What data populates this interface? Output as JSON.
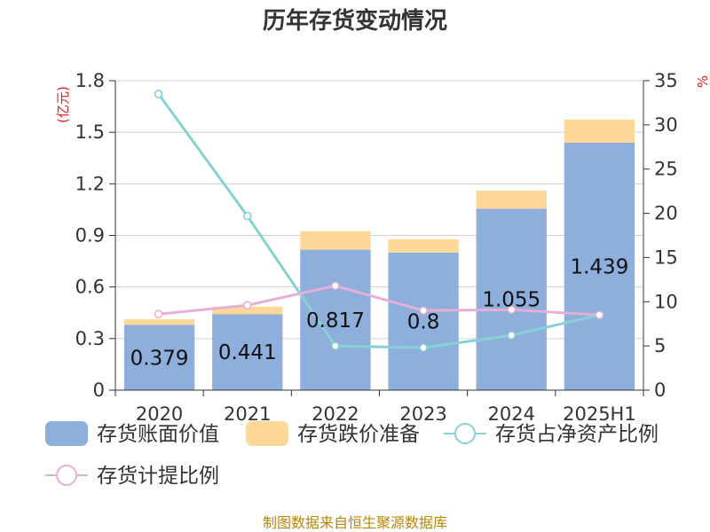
{
  "colors": {
    "book_value": "#8eaedb",
    "reserve": "#fdd898",
    "net_asset_ratio": "#87d1d4",
    "provision_ratio": "#e6b0d6",
    "source_text": "#b8860b",
    "unit_text": "#e02020"
  },
  "chart_data": {
    "type": "bar",
    "title": "历年存货变动情况",
    "left_axis_unit": "(亿元)",
    "right_axis_unit": "%",
    "categories": [
      "2020",
      "2021",
      "2022",
      "2023",
      "2024",
      "2025H1"
    ],
    "ylim_left": [
      0,
      1.8
    ],
    "yticks_left": [
      "0",
      "0.3",
      "0.6",
      "0.9",
      "1.2",
      "1.5",
      "1.8"
    ],
    "ylim_right": [
      0,
      35
    ],
    "yticks_right": [
      "0",
      "5",
      "10",
      "15",
      "20",
      "25",
      "30",
      "35"
    ],
    "grid": true,
    "series": [
      {
        "name": "存货账面价值",
        "kind": "bar-stack",
        "values": [
          0.379,
          0.441,
          0.817,
          0.8,
          1.055,
          1.439
        ],
        "labels": [
          "0.379",
          "0.441",
          "0.817",
          "0.8",
          "1.055",
          "1.439"
        ]
      },
      {
        "name": "存货跌价准备",
        "kind": "bar-stack",
        "values": [
          0.033,
          0.045,
          0.108,
          0.078,
          0.105,
          0.135
        ]
      },
      {
        "name": "存货占净资产比例",
        "kind": "line",
        "axis": "right",
        "values": [
          33.5,
          19.7,
          5.0,
          4.8,
          6.2,
          8.5
        ]
      },
      {
        "name": "存货计提比例",
        "kind": "line",
        "axis": "right",
        "values": [
          8.6,
          9.6,
          11.8,
          9.0,
          9.1,
          8.5
        ]
      }
    ],
    "legend_position": "bottom"
  },
  "source": "制图数据来自恒生聚源数据库"
}
